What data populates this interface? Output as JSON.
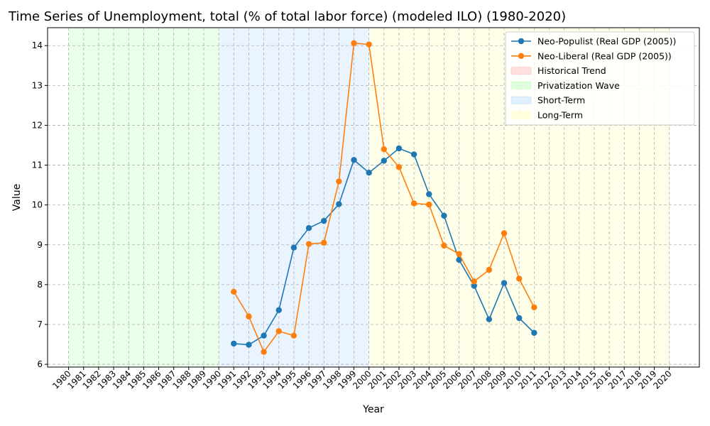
{
  "chart_data": {
    "type": "line",
    "title": "Time Series of Unemployment, total (% of total labor force) (modeled ILO) (1980-2020)",
    "xlabel": "Year",
    "ylabel": "Value",
    "xlim": [
      1978.6,
      2022.0
    ],
    "ylim": [
      5.93,
      14.45
    ],
    "x_ticks": [
      1980,
      1981,
      1982,
      1983,
      1984,
      1985,
      1986,
      1987,
      1988,
      1989,
      1990,
      1991,
      1992,
      1993,
      1994,
      1995,
      1996,
      1997,
      1998,
      1999,
      2000,
      2001,
      2002,
      2003,
      2004,
      2005,
      2006,
      2007,
      2008,
      2009,
      2010,
      2011,
      2012,
      2013,
      2014,
      2015,
      2016,
      2017,
      2018,
      2019,
      2020
    ],
    "y_ticks": [
      6,
      7,
      8,
      9,
      10,
      11,
      12,
      13,
      14
    ],
    "grid": true,
    "legend_position": "top-right",
    "shaded_regions": [
      {
        "name": "Historical Trend",
        "start": null,
        "end": null,
        "color": "#ff9999"
      },
      {
        "name": "Privatization Wave",
        "start": 1980,
        "end": 1990,
        "color": "#99ff99"
      },
      {
        "name": "Short-Term",
        "start": 1990,
        "end": 2000,
        "color": "#99ccff"
      },
      {
        "name": "Long-Term",
        "start": 2000,
        "end": 2020,
        "color": "#ffff99"
      }
    ],
    "series": [
      {
        "name": "Neo-Populist (Real GDP (2005))",
        "color": "#1f77b4",
        "x": [
          1991,
          1992,
          1993,
          1994,
          1995,
          1996,
          1997,
          1998,
          1999,
          2000,
          2001,
          2002,
          2003,
          2004,
          2005,
          2006,
          2007,
          2008,
          2009,
          2010,
          2011
        ],
        "values": [
          6.52,
          6.49,
          6.72,
          7.36,
          8.93,
          9.42,
          9.6,
          10.02,
          11.13,
          10.81,
          11.11,
          11.42,
          11.27,
          10.27,
          9.73,
          8.62,
          7.97,
          7.13,
          8.04,
          7.16,
          6.79
        ]
      },
      {
        "name": "Neo-Liberal (Real GDP (2005))",
        "color": "#ff7f0e",
        "x": [
          1991,
          1992,
          1993,
          1994,
          1995,
          1996,
          1997,
          1998,
          1999,
          2000,
          2001,
          2002,
          2003,
          2004,
          2005,
          2006,
          2007,
          2008,
          2009,
          2010,
          2011
        ],
        "values": [
          7.82,
          7.2,
          6.31,
          6.83,
          6.72,
          9.02,
          9.05,
          10.59,
          14.06,
          14.03,
          11.4,
          10.95,
          10.04,
          10.01,
          8.98,
          8.77,
          8.08,
          8.37,
          9.29,
          8.15,
          7.43
        ]
      }
    ]
  }
}
